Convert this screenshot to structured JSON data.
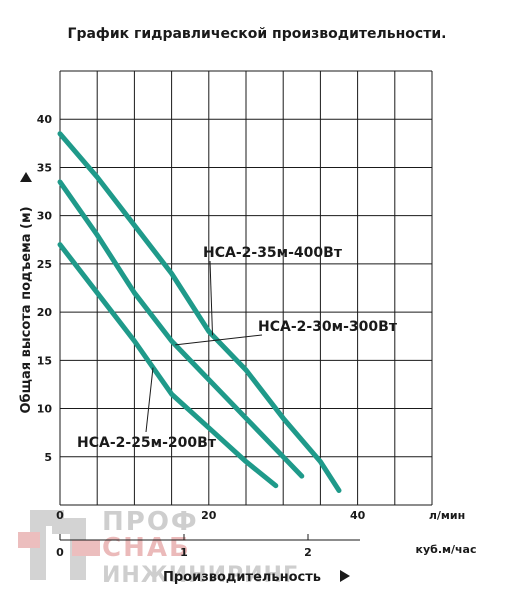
{
  "chart_data": {
    "type": "line",
    "title": "График гидравлической производительности.",
    "ylabel": "Общая высота подъема (м)",
    "xlabel": "Производительность",
    "x_unit": "л/мин",
    "x2_unit": "куб.м/час",
    "xlim": [
      0,
      50
    ],
    "ylim": [
      0,
      45
    ],
    "x_ticks": [
      0,
      20,
      40
    ],
    "x2_ticks": [
      0,
      1,
      2
    ],
    "y_ticks": [
      5,
      10,
      15,
      20,
      25,
      30,
      35,
      40
    ],
    "grid": true,
    "series": [
      {
        "name": "HCA-2-35м-400Вт",
        "x": [
          0,
          5,
          10,
          15,
          20,
          25,
          30,
          35,
          37.5
        ],
        "y": [
          38.5,
          34,
          29,
          24,
          18,
          14,
          9,
          4.5,
          1.5
        ]
      },
      {
        "name": "HCA-2-30м-300Вт",
        "x": [
          0,
          5,
          10,
          15,
          20,
          25,
          30,
          32.5
        ],
        "y": [
          33.5,
          28,
          22,
          17,
          13,
          9,
          5,
          3
        ]
      },
      {
        "name": "HCA-2-25м-200Вт",
        "x": [
          0,
          5,
          10,
          15,
          20,
          25,
          29
        ],
        "y": [
          27,
          22,
          17,
          11.5,
          8,
          4.5,
          2
        ]
      }
    ],
    "line_color": "#1f9a8a"
  },
  "logo": {
    "text_line1": "ПРОФ",
    "text_line2": "СНАБ",
    "text_line3": "ИНЖИНИРИНГ",
    "color_gray": "#c9c9c9",
    "color_red": "#e9b3b3"
  }
}
